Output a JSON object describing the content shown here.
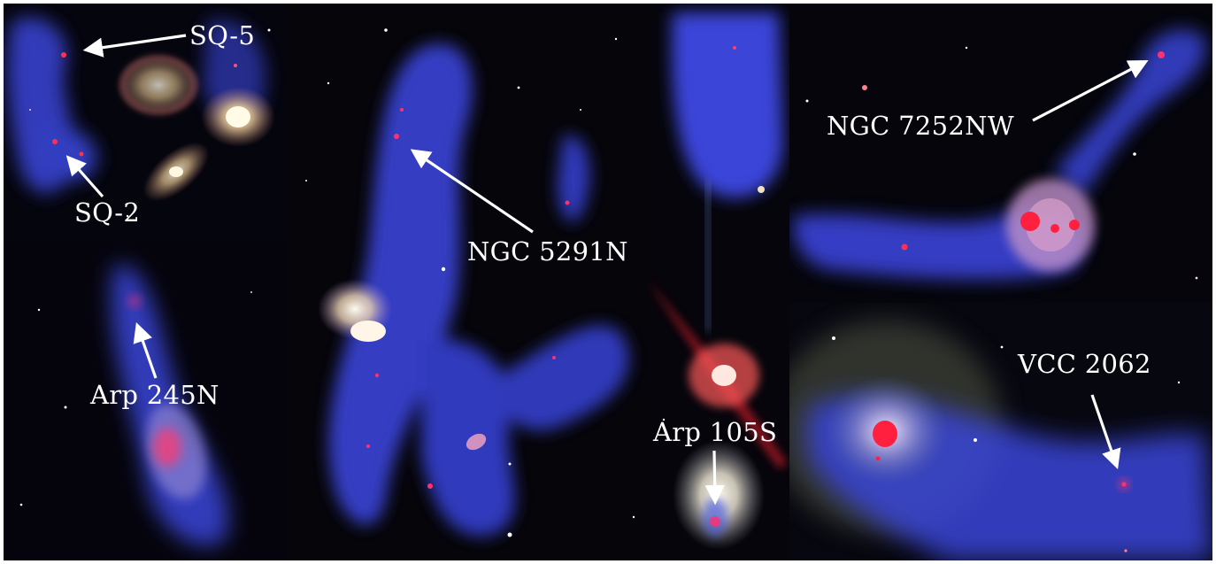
{
  "labels": {
    "sq5": "SQ-5",
    "sq2": "SQ-2",
    "arp245n": "Arp 245N",
    "ngc5291n": "NGC 5291N",
    "arp105s": "Arp 105S",
    "ngc7252nw": "NGC 7252NW",
    "vcc2062": "VCC 2062"
  },
  "palette": {
    "background": "#03030a",
    "hi_gas_blue": "#3a44d8",
    "halpha_red": "#ff2a4a",
    "starlight": "#f6ead8",
    "label_text": "#ffffff",
    "arrow": "#ffffff"
  }
}
